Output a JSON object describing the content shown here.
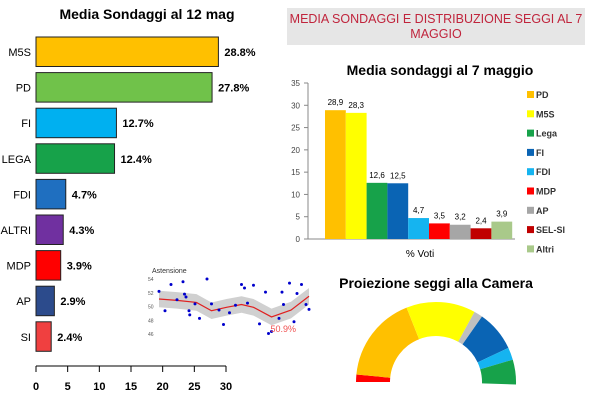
{
  "chart_data": [
    {
      "type": "bar",
      "orientation": "horizontal",
      "title": "Media Sondaggi al 12 mag",
      "categories": [
        "M5S",
        "PD",
        "FI",
        "LEGA",
        "FDI",
        "ALTRI",
        "MDP",
        "AP",
        "SI"
      ],
      "values": [
        28.8,
        27.8,
        12.7,
        12.4,
        4.7,
        4.3,
        3.9,
        2.9,
        2.4
      ],
      "labels": [
        "28.8%",
        "27.8%",
        "12.7%",
        "12.4%",
        "4.7%",
        "4.3%",
        "3.9%",
        "2.9%",
        "2.4%"
      ],
      "colors": [
        "#ffc000",
        "#70c24a",
        "#00b0f0",
        "#17a24a",
        "#1f6fc0",
        "#7030a0",
        "#ff0000",
        "#2c4b8c",
        "#f04040"
      ],
      "xlim": [
        0,
        30
      ],
      "xticks": [
        "0",
        "5",
        "10",
        "15",
        "20",
        "25",
        "30"
      ],
      "grid": false
    },
    {
      "type": "bar",
      "title": "Media sondaggi al 7 maggio",
      "xlabel": "% Voti",
      "ylim": [
        0,
        35
      ],
      "yticks": [
        "0",
        "5",
        "10",
        "15",
        "20",
        "25",
        "30",
        "35"
      ],
      "categories": [
        "PD",
        "M5S",
        "Lega",
        "FI",
        "FDI",
        "MDP",
        "AP",
        "SEL-SI",
        "Altri"
      ],
      "values": [
        28.9,
        28.3,
        12.6,
        12.5,
        4.7,
        3.5,
        3.2,
        2.4,
        3.9
      ],
      "labels": [
        "28,9",
        "28,3",
        "12,6",
        "12,5",
        "4,7",
        "3,5",
        "3,2",
        "2,4",
        "3,9"
      ],
      "colors": [
        "#ffc000",
        "#ffff00",
        "#17a24a",
        "#0a64b4",
        "#15b4f0",
        "#ff0000",
        "#a6a6a6",
        "#c00000",
        "#a9c98a"
      ],
      "legend": "right",
      "grid": false
    },
    {
      "type": "scatter",
      "title": "Astensione",
      "ylim": [
        45,
        55
      ],
      "yticks": [
        "46",
        "48",
        "50",
        "52",
        "54"
      ],
      "annotation": "50.9%",
      "points": [
        [
          0,
          52.2
        ],
        [
          4,
          49.4
        ],
        [
          8,
          53.2
        ],
        [
          12,
          51
        ],
        [
          16,
          53.6
        ],
        [
          17,
          51.8
        ],
        [
          18,
          51.4
        ],
        [
          20,
          49.4
        ],
        [
          20.5,
          48.8
        ],
        [
          24,
          50.4
        ],
        [
          27,
          48.3
        ],
        [
          32,
          54
        ],
        [
          35,
          50.4
        ],
        [
          40,
          49.5
        ],
        [
          43,
          47.4
        ],
        [
          47,
          49.1
        ],
        [
          51,
          50.2
        ],
        [
          55,
          53.2
        ],
        [
          57,
          52.7
        ],
        [
          59,
          50.5
        ],
        [
          63,
          53.1
        ],
        [
          67,
          47.5
        ],
        [
          71,
          52.1
        ],
        [
          73,
          46.1
        ],
        [
          75,
          46.4
        ],
        [
          80,
          48.3
        ],
        [
          82,
          52.1
        ],
        [
          83,
          50.3
        ],
        [
          87,
          53.4
        ],
        [
          90,
          47.8
        ],
        [
          92,
          51.9
        ],
        [
          95,
          53.2
        ],
        [
          98,
          50.3
        ],
        [
          100,
          49.6
        ]
      ],
      "trend": [
        [
          0,
          51.1
        ],
        [
          12,
          50.9
        ],
        [
          25,
          50.6
        ],
        [
          35,
          49.4
        ],
        [
          45,
          49.9
        ],
        [
          55,
          50.3
        ],
        [
          63,
          49.9
        ],
        [
          75,
          48.5
        ],
        [
          88,
          49.5
        ],
        [
          100,
          51.5
        ]
      ],
      "trend_color": "#e02020",
      "point_color": "#0000cc"
    },
    {
      "type": "pie",
      "subtype": "hemicycle",
      "title": "Proiezione seggi alla Camera",
      "categories": [
        "MDP",
        "PD",
        "M5S",
        "AP",
        "FI",
        "FDI",
        "Lega"
      ],
      "shares": [
        0.03,
        0.35,
        0.28,
        0.035,
        0.165,
        0.05,
        0.1
      ],
      "colors": [
        "#ff0000",
        "#ffc000",
        "#ffff00",
        "#bfbfbf",
        "#0a64b4",
        "#15b4f0",
        "#17a24a"
      ]
    }
  ],
  "header": "MEDIA SONDAGGI E DISTRIBUZIONE SEGGI AL 7 MAGGIO"
}
